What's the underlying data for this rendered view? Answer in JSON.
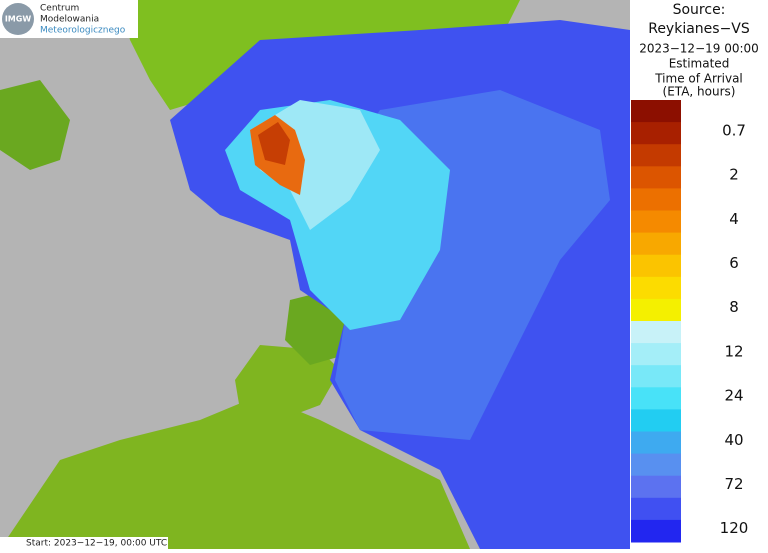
{
  "logo": {
    "lines": [
      "Centrum",
      "Modelowania",
      "Meteorologicznego"
    ],
    "badge": "IMGW"
  },
  "header": {
    "lines": [
      "Source:",
      "Reykianes−VS",
      "2023−12−19 00:00",
      "Estimated",
      "Time of Arrival",
      "(ETA, hours)"
    ]
  },
  "legend": {
    "colors": [
      "#8c0f00",
      "#a82000",
      "#c43a00",
      "#dc5500",
      "#ec7000",
      "#f58a00",
      "#f8a800",
      "#fbc400",
      "#fcdc00",
      "#f4f000",
      "#c8f2f8",
      "#a4eef8",
      "#78e8f8",
      "#48e2f8",
      "#22cdf2",
      "#3eaaf0",
      "#5890f0",
      "#5c72f0",
      "#4050f2",
      "#2226f0"
    ],
    "labels": [
      "0.7",
      "2",
      "4",
      "6",
      "8",
      "12",
      "24",
      "40",
      "72",
      "120"
    ]
  },
  "footer": {
    "text": "Start: 2023−12−19, 00:00 UTC"
  }
}
